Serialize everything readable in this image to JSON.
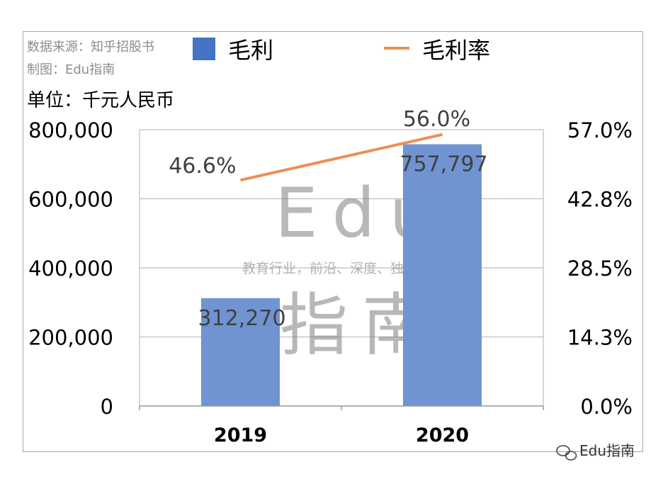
{
  "source_line": "数据来源：知乎招股书",
  "maker_line": "制图：Edu指南",
  "unit_label": "单位：千元人民币",
  "watermark": {
    "line1": "Edu",
    "line2": "教育行业，前沿、深度、独家",
    "line3": "指南"
  },
  "corner_brand": "Edu指南",
  "colors": {
    "bar": "#7094d2",
    "legend_bar": "#4472c4",
    "line": "#ed8f52",
    "grid": "#bfbfbf"
  },
  "chart_data": {
    "type": "bar",
    "categories": [
      "2019",
      "2020"
    ],
    "series": [
      {
        "name": "毛利",
        "kind": "bar",
        "axis": "left",
        "values": [
          312270,
          757797
        ],
        "labels": [
          "312,270",
          "757,797"
        ]
      },
      {
        "name": "毛利率",
        "kind": "line",
        "axis": "right",
        "values": [
          46.6,
          56.0
        ],
        "labels": [
          "46.6%",
          "56.0%"
        ]
      }
    ],
    "left_axis": {
      "ylim": [
        0,
        800000
      ],
      "ticks": [
        "0",
        "200,000",
        "400,000",
        "600,000",
        "800,000"
      ]
    },
    "right_axis": {
      "ylim": [
        0,
        57.0
      ],
      "ticks": [
        "0.0%",
        "14.3%",
        "28.5%",
        "42.8%",
        "57.0%"
      ]
    },
    "grid": true,
    "legend_position": "top"
  }
}
